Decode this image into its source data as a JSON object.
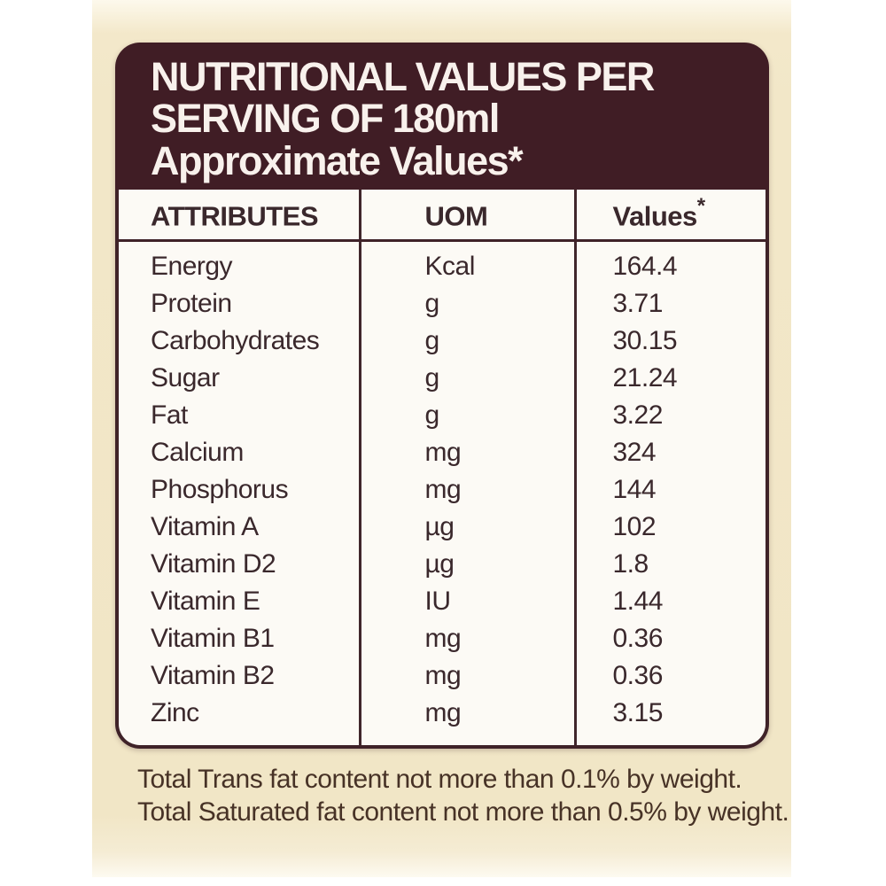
{
  "colors": {
    "panel_background": "#f2e7c8",
    "card_maroon": "#401d25",
    "card_border": "#3f2228",
    "table_background": "#fcfaf5",
    "table_text": "#3a282c",
    "header_text": "#f8f1ec",
    "footnote_text": "#473226"
  },
  "header": {
    "line1": "NUTRITIONAL VALUES PER",
    "line2": "SERVING OF 180ml",
    "line3": "Approximate Values*"
  },
  "table": {
    "columns": [
      {
        "label": "ATTRIBUTES",
        "sup": ""
      },
      {
        "label": "UOM",
        "sup": ""
      },
      {
        "label": "Values",
        "sup": "*"
      }
    ],
    "rows": [
      {
        "attribute": "Energy",
        "uom": "Kcal",
        "value": "164.4"
      },
      {
        "attribute": "Protein",
        "uom": "g",
        "value": "3.71"
      },
      {
        "attribute": "Carbohydrates",
        "uom": "g",
        "value": "30.15"
      },
      {
        "attribute": "Sugar",
        "uom": "g",
        "value": "21.24"
      },
      {
        "attribute": "Fat",
        "uom": "g",
        "value": "3.22"
      },
      {
        "attribute": "Calcium",
        "uom": "mg",
        "value": "324"
      },
      {
        "attribute": "Phosphorus",
        "uom": "mg",
        "value": "144"
      },
      {
        "attribute": "Vitamin A",
        "uom": "µg",
        "value": "102"
      },
      {
        "attribute": "Vitamin D2",
        "uom": "µg",
        "value": "1.8"
      },
      {
        "attribute": "Vitamin E",
        "uom": "IU",
        "value": "1.44"
      },
      {
        "attribute": "Vitamin B1",
        "uom": "mg",
        "value": "0.36"
      },
      {
        "attribute": "Vitamin B2",
        "uom": "mg",
        "value": "0.36"
      },
      {
        "attribute": "Zinc",
        "uom": "mg",
        "value": "3.15"
      }
    ]
  },
  "footnotes": [
    "Total Trans fat content not more than 0.1% by weight.",
    "Total Saturated fat content not more than 0.5% by weight."
  ]
}
